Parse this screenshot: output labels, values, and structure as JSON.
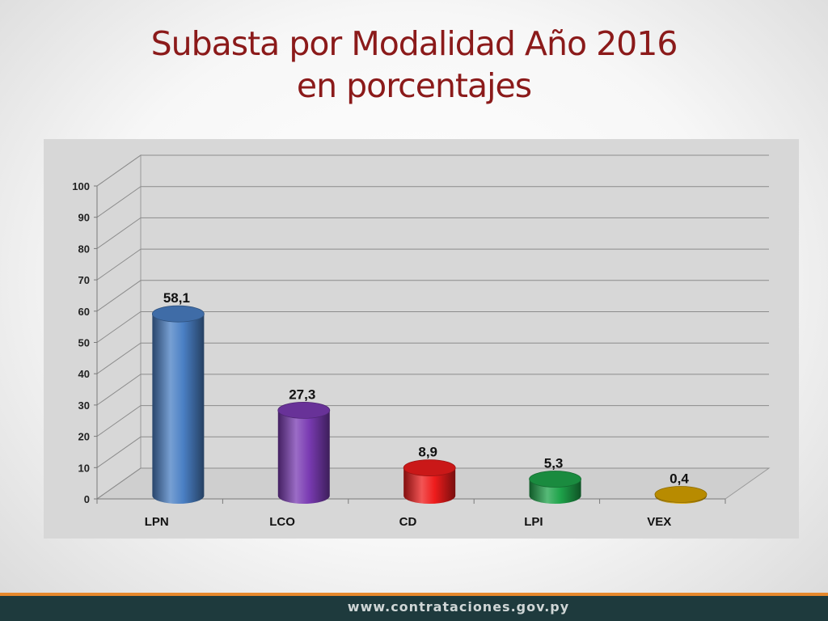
{
  "slide": {
    "title_line1": "Subasta por Modalidad Año 2016",
    "title_line2": "en porcentajes",
    "footer_url": "www.contrataciones.gov.py"
  },
  "chart_data": {
    "type": "bar",
    "title": "",
    "xlabel": "",
    "ylabel": "",
    "categories": [
      "LPN",
      "LCO",
      "CD",
      "LPI",
      "VEX"
    ],
    "values": [
      58.1,
      27.3,
      8.9,
      5.3,
      0.4
    ],
    "value_labels": [
      "58,1",
      "27,3",
      "8,9",
      "5,3",
      "0,4"
    ],
    "ylim": [
      0,
      100
    ],
    "yticks": [
      0,
      10,
      20,
      30,
      40,
      50,
      60,
      70,
      80,
      90,
      100
    ],
    "grid": true,
    "legend": "none",
    "style": "3d-cylinder",
    "colors": [
      "#4a7fc4",
      "#7a3bb3",
      "#ee1c1c",
      "#1ea34a",
      "#d9a400"
    ]
  }
}
